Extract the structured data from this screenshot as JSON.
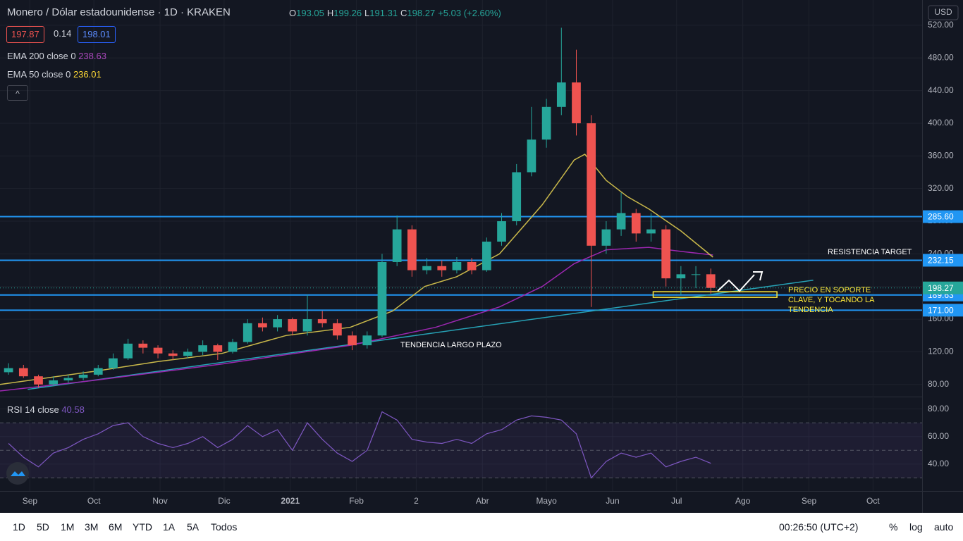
{
  "header": {
    "title": "Monero / Dólar estadounidense · 1D · KRAKEN",
    "ohlc": [
      {
        "label": "O",
        "value": "193.05"
      },
      {
        "label": "H",
        "value": "199.26"
      },
      {
        "label": "L",
        "value": "191.31"
      },
      {
        "label": "C",
        "value": "198.27"
      }
    ],
    "change": "+5.03 (+2.60%)",
    "bid": "197.87",
    "spread": "0.14",
    "ask": "198.01",
    "currency": "USD"
  },
  "chart_data": {
    "type": "candlestick",
    "up_color": "#26a69a",
    "down_color": "#ef5350",
    "x": [
      -10,
      -3,
      4,
      11,
      18,
      25,
      32,
      39,
      46,
      53,
      60,
      67,
      74,
      81,
      88,
      95,
      102,
      109,
      116,
      123,
      130,
      137,
      144,
      151,
      158,
      165,
      172,
      179,
      186,
      193,
      200,
      207,
      214,
      221,
      228,
      235,
      242,
      249,
      256,
      263,
      270,
      277,
      284,
      291,
      298,
      305,
      312,
      319
    ],
    "open": [
      95,
      100,
      90,
      80,
      85,
      88,
      92,
      100,
      112,
      130,
      125,
      118,
      115,
      120,
      128,
      120,
      132,
      155,
      150,
      160,
      145,
      160,
      155,
      140,
      128,
      140,
      230,
      270,
      220,
      225,
      220,
      230,
      220,
      255,
      280,
      340,
      380,
      420,
      450,
      400,
      250,
      270,
      290,
      265,
      270,
      210,
      215,
      215
    ],
    "high": [
      106,
      104,
      92,
      90,
      92,
      96,
      104,
      118,
      136,
      134,
      128,
      122,
      124,
      134,
      130,
      136,
      160,
      162,
      165,
      162,
      190,
      170,
      160,
      145,
      145,
      240,
      287,
      275,
      235,
      232,
      236,
      235,
      260,
      290,
      350,
      420,
      430,
      517,
      490,
      410,
      280,
      315,
      295,
      290,
      275,
      225,
      225,
      222
    ],
    "low": [
      92,
      88,
      76,
      78,
      82,
      85,
      90,
      98,
      110,
      118,
      112,
      110,
      112,
      116,
      110,
      118,
      130,
      145,
      145,
      140,
      140,
      150,
      135,
      122,
      124,
      138,
      225,
      212,
      215,
      212,
      216,
      215,
      218,
      250,
      275,
      335,
      370,
      410,
      385,
      175,
      240,
      262,
      255,
      255,
      200,
      190,
      198,
      191.31
    ],
    "close": [
      100,
      90,
      80,
      85,
      88,
      92,
      100,
      112,
      130,
      125,
      118,
      115,
      120,
      128,
      120,
      132,
      155,
      150,
      160,
      145,
      160,
      155,
      140,
      128,
      140,
      230,
      270,
      220,
      225,
      220,
      230,
      220,
      255,
      280,
      340,
      380,
      420,
      450,
      400,
      250,
      270,
      290,
      265,
      270,
      210,
      215,
      215,
      198.27
    ],
    "close_label": "198.27",
    "series": [
      {
        "name": "EMA 200 close 0",
        "color": "#9c27b0",
        "x": [
          -14,
          30,
          90,
          150,
          190,
          220,
          240,
          255,
          270,
          290,
          305,
          320
        ],
        "values": [
          72,
          85,
          105,
          128,
          150,
          175,
          200,
          228,
          245,
          248,
          243,
          238.63
        ]
      },
      {
        "name": "EMA 50 close 0",
        "color": "#c9b84a",
        "x": [
          -14,
          30,
          60,
          90,
          120,
          150,
          170,
          185,
          200,
          220,
          240,
          255,
          260,
          270,
          280,
          290,
          305,
          320
        ],
        "values": [
          80,
          96,
          108,
          118,
          140,
          150,
          170,
          200,
          212,
          240,
          300,
          355,
          362,
          330,
          310,
          295,
          268,
          236.01
        ]
      }
    ],
    "xlim": [
      -14,
      418
    ],
    "ylim": [
      66,
      551
    ],
    "xticks": [
      {
        "value": 0,
        "label": "Sep"
      },
      {
        "value": 30,
        "label": "Oct"
      },
      {
        "value": 61,
        "label": "Nov"
      },
      {
        "value": 91,
        "label": "Dic"
      },
      {
        "value": 122,
        "label": "2021"
      },
      {
        "value": 153,
        "label": "Feb"
      },
      {
        "value": 181,
        "label": "2"
      },
      {
        "value": 212,
        "label": "Abr"
      },
      {
        "value": 242,
        "label": "Mayo"
      },
      {
        "value": 273,
        "label": "Jun"
      },
      {
        "value": 303,
        "label": "Jul"
      },
      {
        "value": 334,
        "label": "Ago"
      },
      {
        "value": 365,
        "label": "Sep"
      },
      {
        "value": 395,
        "label": "Oct"
      }
    ],
    "yticks": [
      {
        "value": 80,
        "label": "80.00"
      },
      {
        "value": 120,
        "label": "120.00"
      },
      {
        "value": 160,
        "label": "160.00"
      },
      {
        "value": 200,
        "label": "200.00"
      },
      {
        "value": 240,
        "label": "240.00"
      },
      {
        "value": 280,
        "label": "280.00"
      },
      {
        "value": 320,
        "label": "320.00"
      },
      {
        "value": 360,
        "label": "360.00"
      },
      {
        "value": 400,
        "label": "400.00"
      },
      {
        "value": 440,
        "label": "440.00"
      },
      {
        "value": 480,
        "label": "480.00"
      },
      {
        "value": 520,
        "label": "520.00"
      }
    ],
    "grid": true,
    "hlines": [
      {
        "value": 285.6,
        "label": "285.60"
      },
      {
        "value": 232.15,
        "label": "232.15"
      },
      {
        "value": 189.63,
        "label": "189.63"
      },
      {
        "value": 171,
        "label": "171.00"
      }
    ],
    "hline_color": "#2196f3",
    "trendline": {
      "x": [
        -1,
        367
      ],
      "values": [
        74,
        207.7
      ],
      "color": "#26a1b5"
    },
    "zone": {
      "x": [
        292,
        350
      ],
      "values": [
        193.6,
        186.7
      ],
      "color": "#ffeb3b"
    },
    "annotations": {
      "resistance": "RESISTENCIA TARGET",
      "support": [
        "PRECIO EN SOPORTE",
        "CLAVE, Y TOCANDO LA",
        "TENDENCIA"
      ],
      "trend": "TENDENCIA LARGO PLAZO"
    },
    "rsi": {
      "name": "RSI 14 close",
      "color": "#7e57c2",
      "values": [
        55,
        45,
        38,
        48,
        52,
        58,
        62,
        68,
        70,
        60,
        55,
        52,
        55,
        60,
        52,
        58,
        68,
        60,
        65,
        50,
        70,
        58,
        48,
        42,
        50,
        78,
        72,
        58,
        56,
        55,
        58,
        55,
        62,
        65,
        72,
        75,
        74,
        72,
        62,
        30,
        42,
        48,
        45,
        48,
        38,
        42,
        45,
        40.58
      ],
      "ylim": [
        20.5,
        88
      ],
      "yticks": [
        {
          "value": 40,
          "label": "40.00"
        },
        {
          "value": 60,
          "label": "60.00"
        },
        {
          "value": 80,
          "label": "80.00"
        }
      ],
      "levels": [
        30,
        50,
        70
      ]
    }
  },
  "toolbar": {
    "ranges": [
      "1D",
      "5D",
      "1M",
      "3M",
      "6M",
      "YTD",
      "1A",
      "5A",
      "Todos"
    ],
    "clock": "00:26:50 (UTC+2)",
    "options": [
      "%",
      "log",
      "auto"
    ]
  }
}
